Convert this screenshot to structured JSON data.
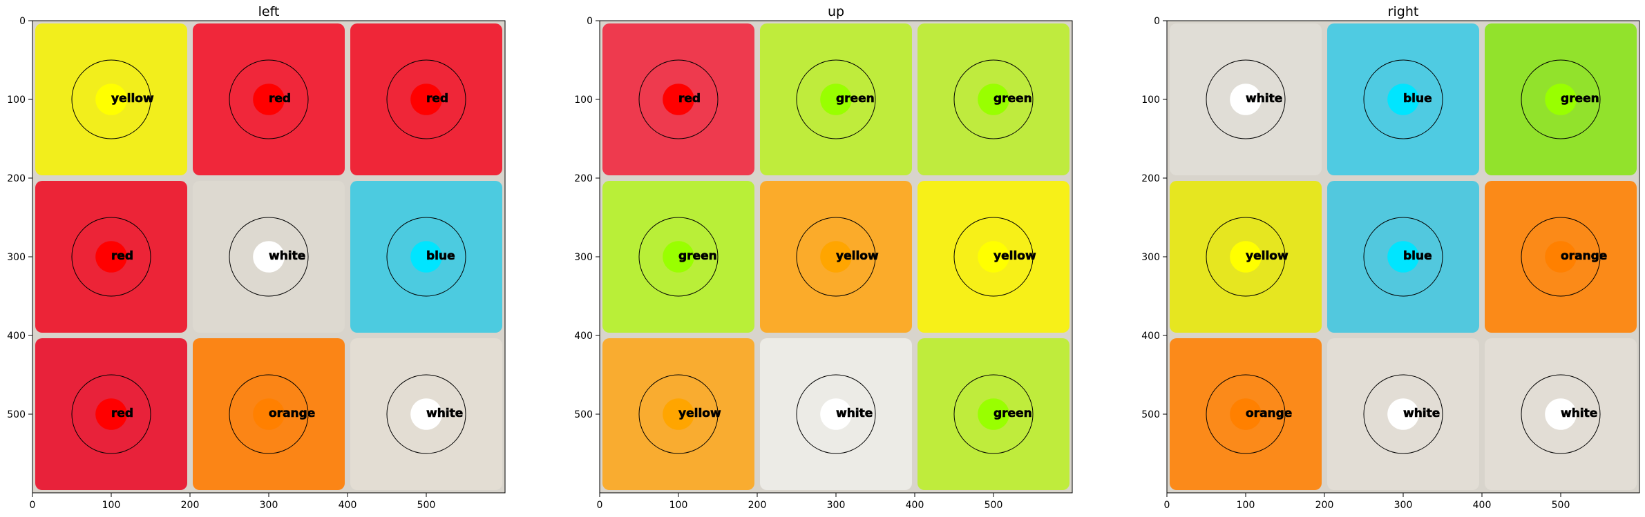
{
  "chart_data": [
    {
      "type": "heatmap",
      "title": "left",
      "xlim": [
        0,
        600
      ],
      "ylim": [
        600,
        0
      ],
      "xticks": [
        0,
        100,
        200,
        300,
        400,
        500
      ],
      "yticks": [
        0,
        100,
        200,
        300,
        400,
        500
      ],
      "cell_centers": [
        100,
        300,
        500
      ],
      "cells": [
        [
          {
            "label": "yellow",
            "fill": "#f2ee1c",
            "dot": "#ffff00"
          },
          {
            "label": "red",
            "fill": "#f0273a",
            "dot": "#ff0000"
          },
          {
            "label": "red",
            "fill": "#ef2638",
            "dot": "#ff0000"
          }
        ],
        [
          {
            "label": "red",
            "fill": "#ec2437",
            "dot": "#ff0000"
          },
          {
            "label": "white",
            "fill": "#ddd9d0",
            "dot": "#ffffff"
          },
          {
            "label": "blue",
            "fill": "#4ccbe0",
            "dot": "#00e5ff"
          }
        ],
        [
          {
            "label": "red",
            "fill": "#e8223a",
            "dot": "#ff0000"
          },
          {
            "label": "orange",
            "fill": "#fb8516",
            "dot": "#ff8000"
          },
          {
            "label": "white",
            "fill": "#e3ddd3",
            "dot": "#ffffff"
          }
        ]
      ]
    },
    {
      "type": "heatmap",
      "title": "up",
      "xlim": [
        0,
        600
      ],
      "ylim": [
        600,
        0
      ],
      "xticks": [
        0,
        100,
        200,
        300,
        400,
        500
      ],
      "yticks": [
        0,
        100,
        200,
        300,
        400,
        500
      ],
      "cell_centers": [
        100,
        300,
        500
      ],
      "cells": [
        [
          {
            "label": "red",
            "fill": "#ee3a4e",
            "dot": "#ff0000"
          },
          {
            "label": "green",
            "fill": "#bfec3c",
            "dot": "#99ff00"
          },
          {
            "label": "green",
            "fill": "#bfeb3e",
            "dot": "#99ff00"
          }
        ],
        [
          {
            "label": "green",
            "fill": "#b9ef38",
            "dot": "#99ff00"
          },
          {
            "label": "yellow",
            "fill": "#fbab2a",
            "dot": "#ffa500"
          },
          {
            "label": "yellow",
            "fill": "#f7f018",
            "dot": "#ffff00"
          }
        ],
        [
          {
            "label": "yellow",
            "fill": "#f9ac30",
            "dot": "#ffa500"
          },
          {
            "label": "white",
            "fill": "#ecebe6",
            "dot": "#ffffff"
          },
          {
            "label": "green",
            "fill": "#bfec3c",
            "dot": "#99ff00"
          }
        ]
      ]
    },
    {
      "type": "heatmap",
      "title": "right",
      "xlim": [
        0,
        600
      ],
      "ylim": [
        600,
        0
      ],
      "xticks": [
        0,
        100,
        200,
        300,
        400,
        500
      ],
      "yticks": [
        0,
        100,
        200,
        300,
        400,
        500
      ],
      "cell_centers": [
        100,
        300,
        500
      ],
      "cells": [
        [
          {
            "label": "white",
            "fill": "#e0ddd6",
            "dot": "#ffffff"
          },
          {
            "label": "blue",
            "fill": "#4fcbe2",
            "dot": "#00e5ff"
          },
          {
            "label": "green",
            "fill": "#92e22c",
            "dot": "#99ff00"
          }
        ],
        [
          {
            "label": "yellow",
            "fill": "#e6e620",
            "dot": "#ffff00"
          },
          {
            "label": "blue",
            "fill": "#52c8de",
            "dot": "#00e5ff"
          },
          {
            "label": "orange",
            "fill": "#fb8a18",
            "dot": "#ff8000"
          }
        ],
        [
          {
            "label": "orange",
            "fill": "#fb8a1a",
            "dot": "#ff8000"
          },
          {
            "label": "white",
            "fill": "#e2ddd5",
            "dot": "#ffffff"
          },
          {
            "label": "white",
            "fill": "#e2ddd5",
            "dot": "#ffffff"
          }
        ]
      ]
    }
  ]
}
